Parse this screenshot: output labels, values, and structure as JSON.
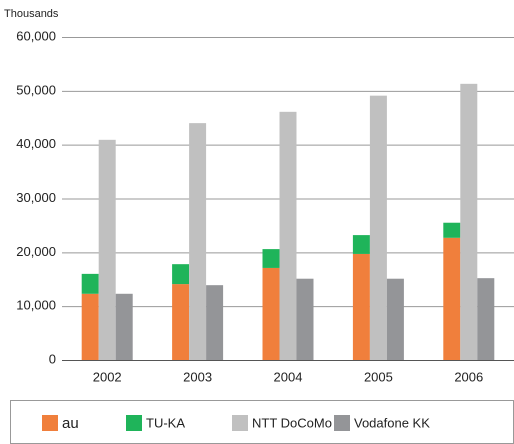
{
  "chart_data": {
    "type": "bar",
    "y_label": "Thousands",
    "categories": [
      "2002",
      "2003",
      "2004",
      "2005",
      "2006"
    ],
    "series": [
      {
        "name": "au",
        "color": "#f07f3c",
        "values": [
          12300,
          14100,
          17100,
          19700,
          22700
        ]
      },
      {
        "name": "TU-KA",
        "color": "#1fb45a",
        "stack": true,
        "values": [
          3700,
          3700,
          3500,
          3500,
          2800
        ]
      },
      {
        "name": "NTT DoCoMo",
        "color": "#c0c0c0",
        "values": [
          40900,
          44000,
          46100,
          49100,
          51300
        ]
      },
      {
        "name": "Vodafone KK",
        "color": "#949598",
        "values": [
          12300,
          13900,
          15100,
          15100,
          15200
        ]
      }
    ],
    "ylim": [
      0,
      60000
    ],
    "yticks": [
      0,
      {
        "value": 10000,
        "label": "10,000"
      },
      {
        "value": 20000,
        "label": "20,000"
      },
      {
        "value": 30000,
        "label": "30,000"
      },
      {
        "value": 40000,
        "label": "40,000"
      },
      {
        "value": 50000,
        "label": "50,000"
      },
      {
        "value": 60000,
        "label": "60,000"
      }
    ],
    "grid": true,
    "legend": "bottom"
  }
}
